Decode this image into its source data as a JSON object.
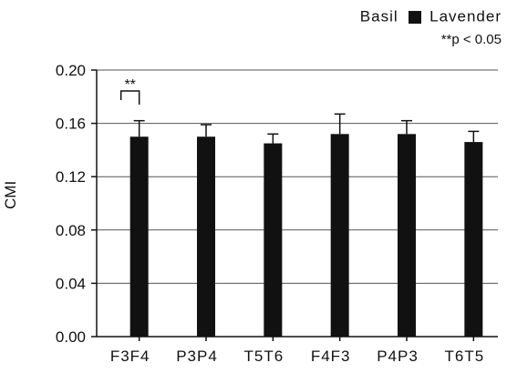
{
  "chart_data": {
    "type": "bar",
    "title": "",
    "xlabel": "",
    "ylabel": "CMI",
    "categories": [
      "F3F4",
      "P3P4",
      "T5T6",
      "F4F3",
      "P4P3",
      "T6T5"
    ],
    "series": [
      {
        "name": "Lavender",
        "color": "#111111",
        "values": [
          0.15,
          0.15,
          0.145,
          0.152,
          0.152,
          0.146
        ],
        "error": [
          0.012,
          0.009,
          0.007,
          0.015,
          0.01,
          0.008
        ]
      }
    ],
    "legend_labels": [
      "Basil",
      "Lavender"
    ],
    "legend_placement": "top-right",
    "ylim": [
      0,
      0.2
    ],
    "yticks": [
      "0.00",
      "0.04",
      "0.08",
      "0.12",
      "0.16",
      "0.20"
    ],
    "ytick_values": [
      0,
      0.04,
      0.08,
      0.12,
      0.16,
      0.2
    ],
    "grid": "horizontal",
    "annotation": {
      "text": "**",
      "category": "F3F4",
      "note": "**p < 0.05"
    }
  }
}
